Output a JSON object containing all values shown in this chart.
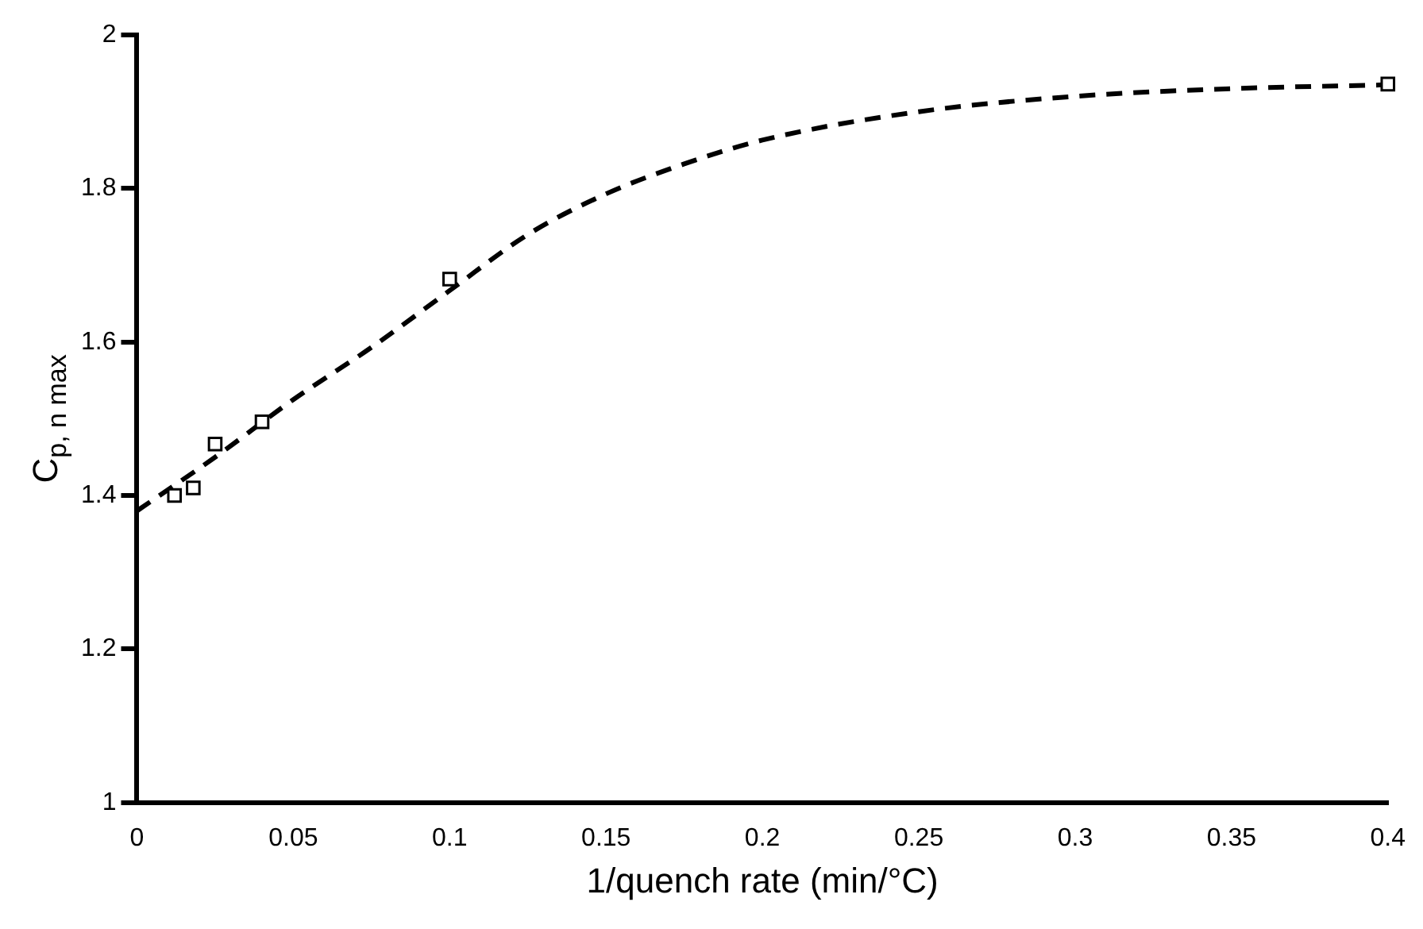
{
  "chart_data": {
    "type": "scatter",
    "xlabel": "1/quench rate (min/°C)",
    "ylabel": "C$_{p, n max}$",
    "xlim": [
      0,
      0.4
    ],
    "xticks": [
      0,
      0.05,
      0.1,
      0.15,
      0.2,
      0.25,
      0.3,
      0.35,
      0.4
    ],
    "ylim": [
      1,
      2
    ],
    "yticks": [
      1,
      1.2,
      1.4,
      1.6,
      1.8,
      2
    ],
    "grid": false,
    "legend": false,
    "series": [
      {
        "color": "#000000",
        "marker": "square",
        "x": [
          0.012,
          0.018,
          0.025,
          0.04,
          0.1,
          0.4
        ],
        "values": [
          1.4,
          1.41,
          1.467,
          1.496,
          1.682,
          1.936
        ]
      },
      {
        "type": "line",
        "color": "#000000",
        "marker": "none",
        "line_style": "dashed",
        "x": [
          0,
          0.025,
          0.05,
          0.075,
          0.1,
          0.125,
          0.15,
          0.175,
          0.2,
          0.25,
          0.3,
          0.35,
          0.4
        ],
        "values": [
          1.38,
          1.45,
          1.525,
          1.593,
          1.667,
          1.74,
          1.793,
          1.832,
          1.863,
          1.9,
          1.92,
          1.93,
          1.935
        ]
      }
    ]
  }
}
